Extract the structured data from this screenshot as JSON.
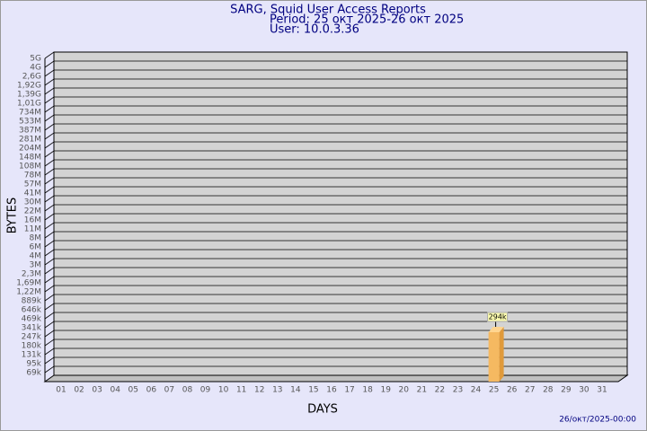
{
  "chart_data": {
    "type": "bar",
    "title": "SARG, Squid User Access Reports",
    "subtitle": "Period: 25 окт 2025-26 окт 2025",
    "user": "User: 10.0.3.36",
    "x_label": "DAYS",
    "y_label": "BYTES",
    "footer": "26/окт/2025-00:00",
    "categories": [
      "01",
      "02",
      "03",
      "04",
      "05",
      "06",
      "07",
      "08",
      "09",
      "10",
      "11",
      "12",
      "13",
      "14",
      "15",
      "16",
      "17",
      "18",
      "19",
      "20",
      "21",
      "22",
      "23",
      "24",
      "25",
      "26",
      "27",
      "28",
      "29",
      "30",
      "31"
    ],
    "values": [
      null,
      null,
      null,
      null,
      null,
      null,
      null,
      null,
      null,
      null,
      null,
      null,
      null,
      null,
      null,
      null,
      null,
      null,
      null,
      null,
      null,
      null,
      null,
      null,
      294000,
      null,
      null,
      null,
      null,
      null,
      null
    ],
    "value_labels": [
      null,
      null,
      null,
      null,
      null,
      null,
      null,
      null,
      null,
      null,
      null,
      null,
      null,
      null,
      null,
      null,
      null,
      null,
      null,
      null,
      null,
      null,
      null,
      null,
      "294k",
      null,
      null,
      null,
      null,
      null,
      null
    ],
    "color": "#f5b961",
    "ylim": [
      0,
      5000000000
    ],
    "yticks": [
      {
        "value": 69000,
        "label": "69k"
      },
      {
        "value": 95000,
        "label": "95k"
      },
      {
        "value": 131000,
        "label": "131k"
      },
      {
        "value": 180000,
        "label": "180k"
      },
      {
        "value": 247000,
        "label": "247k"
      },
      {
        "value": 341000,
        "label": "341k"
      },
      {
        "value": 469000,
        "label": "469k"
      },
      {
        "value": 646000,
        "label": "646k"
      },
      {
        "value": 889000,
        "label": "889k"
      },
      {
        "value": 1220000,
        "label": "1,22M"
      },
      {
        "value": 1690000,
        "label": "1,69M"
      },
      {
        "value": 2300000,
        "label": "2,3M"
      },
      {
        "value": 3000000,
        "label": "3M"
      },
      {
        "value": 4000000,
        "label": "4M"
      },
      {
        "value": 6000000,
        "label": "6M"
      },
      {
        "value": 8000000,
        "label": "8M"
      },
      {
        "value": 11000000,
        "label": "11M"
      },
      {
        "value": 16000000,
        "label": "16M"
      },
      {
        "value": 22000000,
        "label": "22M"
      },
      {
        "value": 30000000,
        "label": "30M"
      },
      {
        "value": 41000000,
        "label": "41M"
      },
      {
        "value": 57000000,
        "label": "57M"
      },
      {
        "value": 78000000,
        "label": "78M"
      },
      {
        "value": 108000000,
        "label": "108M"
      },
      {
        "value": 148000000,
        "label": "148M"
      },
      {
        "value": 204000000,
        "label": "204M"
      },
      {
        "value": 281000000,
        "label": "281M"
      },
      {
        "value": 387000000,
        "label": "387M"
      },
      {
        "value": 533000000,
        "label": "533M"
      },
      {
        "value": 734000000,
        "label": "734M"
      },
      {
        "value": 1010000000,
        "label": "1,01G"
      },
      {
        "value": 1390000000,
        "label": "1,39G"
      },
      {
        "value": 1920000000,
        "label": "1,92G"
      },
      {
        "value": 2600000000,
        "label": "2,6G"
      },
      {
        "value": 4000000000,
        "label": "4G"
      },
      {
        "value": 5000000000,
        "label": "5G"
      }
    ],
    "grid": true
  }
}
